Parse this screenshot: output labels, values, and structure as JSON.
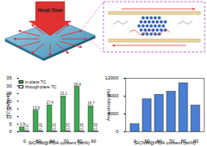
{
  "diagram": {
    "text": "Heat flow"
  },
  "chart_data": [
    {
      "type": "bar",
      "x_label": "SiCNW@PDA content (wt%)",
      "y_label": "TC (W/mK)",
      "categories": [
        "0",
        "50",
        "60",
        "70",
        "80",
        "90"
      ],
      "series": [
        {
          "name": "in-plane TC",
          "color": "#3faa55",
          "values": [
            2.9,
            13.9,
            17.4,
            23.1,
            29.4,
            16.7
          ]
        },
        {
          "name": "through-plane TC",
          "color": "#ffffff",
          "values": [
            0.17,
            0.19,
            0.21,
            0.23,
            0.26,
            0.22
          ]
        }
      ],
      "ylim": [
        0,
        35
      ],
      "yticks": [
        0,
        5,
        10,
        15,
        20,
        25,
        30,
        35
      ],
      "legend": "upper left",
      "data_labels": true
    },
    {
      "type": "bar",
      "x_label": "SiCNW@PDA content (wt%)",
      "y_label": "Anisotropy (%)",
      "categories": [
        "0",
        "50",
        "60",
        "70",
        "80",
        "90"
      ],
      "values": [
        1700,
        7300,
        8300,
        9000,
        10900,
        5900
      ],
      "color": "#4a7fd4",
      "ylim": [
        0,
        12000
      ],
      "yticks": [
        0,
        4000,
        8000,
        12000
      ]
    }
  ]
}
